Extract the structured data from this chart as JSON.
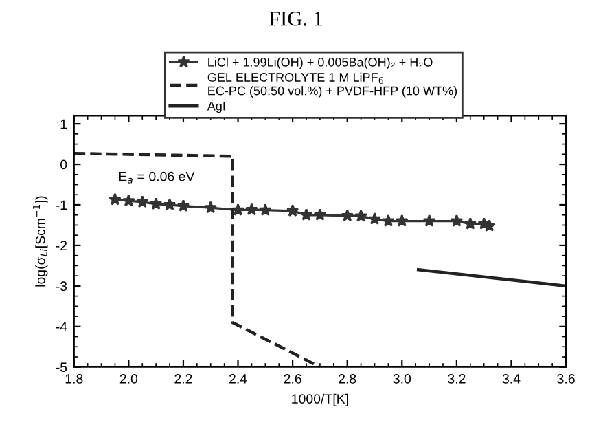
{
  "chart_data": {
    "type": "line",
    "title": "FIG. 1",
    "xlabel": "1000/T[K]",
    "ylabel": "log(σ$_{Li}$[Scm$^{−1}$])",
    "annotations": [
      "E$_{a}$ = 0.06 eV"
    ],
    "series": [
      {
        "name": "LiCl + 1.99Li(OH) + 0.005Ba(OH)₂ + H₂O",
        "color": "#333333",
        "marker": "star",
        "line_style": "solid",
        "x": [
          1.95,
          2.0,
          2.05,
          2.1,
          2.15,
          2.2,
          2.3,
          2.4,
          2.45,
          2.5,
          2.6,
          2.65,
          2.7,
          2.8,
          2.85,
          2.9,
          2.95,
          3.0,
          3.1,
          3.2,
          3.25,
          3.3,
          3.32
        ],
        "values": [
          -0.87,
          -0.9,
          -0.93,
          -0.98,
          -1.0,
          -1.03,
          -1.07,
          -1.13,
          -1.12,
          -1.13,
          -1.15,
          -1.25,
          -1.25,
          -1.27,
          -1.28,
          -1.35,
          -1.4,
          -1.4,
          -1.4,
          -1.4,
          -1.47,
          -1.47,
          -1.52
        ]
      },
      {
        "name": "GEL ELECTROLYTE 1 M LiPF$_{6}$\nEC-PC (50:50 vol.%) + PVDF-HFP (10 WT%)",
        "color": "#222222",
        "marker": "none",
        "line_style": "dashed",
        "x": [
          1.8,
          2.38,
          2.38,
          2.7
        ],
        "values": [
          0.27,
          0.2,
          -3.9,
          -5.0
        ]
      },
      {
        "name": "AgI",
        "color": "#222222",
        "marker": "none",
        "line_style": "solid",
        "x": [
          3.06,
          3.6
        ],
        "values": [
          -2.6,
          -3.0
        ]
      }
    ],
    "xlim": [
      1.8,
      3.6
    ],
    "xticks": [
      1.8,
      {
        "value": 2,
        "label": "2.0"
      },
      2.2,
      2.4,
      2.6,
      2.8,
      {
        "value": 3,
        "label": "3.0"
      },
      3.2,
      3.4,
      3.6
    ],
    "ylim": [
      -5,
      1.2
    ],
    "yticks": [
      -5,
      -4,
      -3,
      -2,
      -1,
      0,
      1
    ],
    "grid": false,
    "legend": "top"
  }
}
